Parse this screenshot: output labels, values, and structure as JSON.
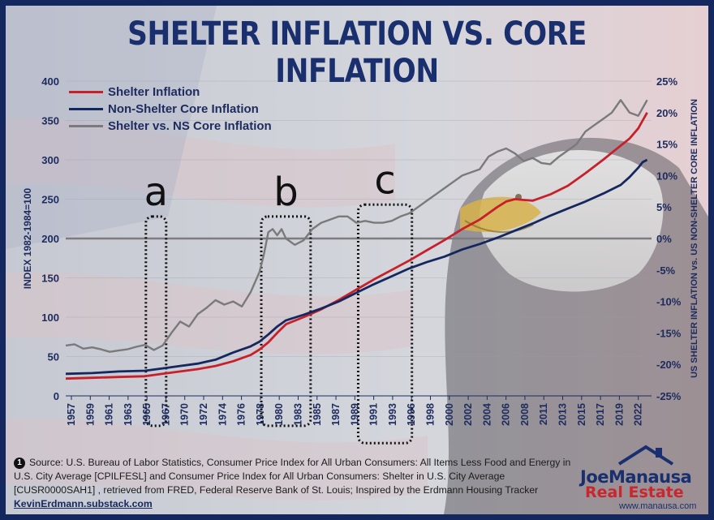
{
  "title": "SHELTER INFLATION VS. CORE INFLATION",
  "legend": [
    {
      "label": "Shelter Inflation",
      "color": "#c8202b"
    },
    {
      "label": "Non-Shelter Core Inflation",
      "color": "#14275e"
    },
    {
      "label": "Shelter vs. NS Core Inflation",
      "color": "#7a7a7a"
    }
  ],
  "source": {
    "number": "1",
    "text": "Source: U.S. Bureau of Labor Statistics, Consumer Price Index for All Urban Consumers: All Items Less Food and Energy in U.S. City Average [CPILFESL] and Consumer Price Index for All Urban Consumers: Shelter in U.S. City Average [CUSR0000SAH1] , retrieved from FRED, Federal Reserve Bank of St. Louis; Inspired by the Erdmann Housing Tracker",
    "link": "KevinErdmann.substack.com"
  },
  "logo": {
    "first": "Joe",
    "last": "Manausa",
    "sub": "Real Estate",
    "url": "www.manausa.com"
  },
  "chart_data": {
    "type": "line",
    "ylabel": "INDEX 1982-1984=100",
    "ylabel_right": "US SHELTER INFLATION vs. US NON-SHELTER CORE INFLATION",
    "ylim": [
      0,
      400
    ],
    "ylim_right": [
      -25,
      25
    ],
    "y_ticks": [
      "0",
      "50",
      "100",
      "150",
      "200",
      "250",
      "300",
      "350",
      "400"
    ],
    "y_ticks_right": [
      "-25%",
      "-20%",
      "-15%",
      "-10%",
      "-5%",
      "0%",
      "5%",
      "10%",
      "15%",
      "20%",
      "25%"
    ],
    "xlim": [
      1957,
      2023.5
    ],
    "x_ticks": [
      "1957",
      "1959",
      "1961",
      "1963",
      "1965",
      "1967",
      "1970",
      "1972",
      "1974",
      "1976",
      "1978",
      "1980",
      "1983",
      "1985",
      "1987",
      "1989",
      "1991",
      "1993",
      "1996",
      "1998",
      "2000",
      "2002",
      "2004",
      "2006",
      "2008",
      "2011",
      "2013",
      "2015",
      "2017",
      "2019",
      "2022"
    ],
    "reference_line_right": 0,
    "series": [
      {
        "name": "Shelter Inflation",
        "axis": "left",
        "color": "#c8202b",
        "x": [
          1957,
          1960,
          1963,
          1966,
          1968,
          1970,
          1972,
          1974,
          1976,
          1978,
          1979,
          1980,
          1981,
          1982,
          1984,
          1986,
          1988,
          1990,
          1992,
          1994,
          1996,
          1998,
          2000,
          2002,
          2004,
          2006,
          2007,
          2008,
          2009,
          2010,
          2012,
          2014,
          2016,
          2018,
          2020,
          2021,
          2022,
          2022.5,
          2023
        ],
        "values": [
          22,
          23,
          24,
          25,
          28,
          31,
          34,
          38,
          44,
          52,
          59,
          68,
          80,
          91,
          100,
          110,
          122,
          135,
          148,
          160,
          172,
          185,
          198,
          212,
          224,
          240,
          247,
          250,
          249,
          248,
          256,
          267,
          283,
          300,
          318,
          327,
          340,
          350,
          360
        ]
      },
      {
        "name": "Non-Shelter Core Inflation",
        "axis": "left",
        "color": "#14275e",
        "x": [
          1957,
          1960,
          1963,
          1966,
          1968,
          1970,
          1972,
          1974,
          1976,
          1978,
          1979,
          1980,
          1981,
          1982,
          1984,
          1986,
          1988,
          1990,
          1992,
          1994,
          1996,
          1998,
          2000,
          2002,
          2004,
          2006,
          2008,
          2010,
          2012,
          2014,
          2016,
          2018,
          2020,
          2021,
          2022,
          2022.5,
          2023
        ],
        "values": [
          28,
          29,
          31,
          32,
          35,
          38,
          41,
          46,
          55,
          63,
          69,
          78,
          88,
          96,
          103,
          111,
          120,
          131,
          142,
          152,
          162,
          170,
          177,
          186,
          193,
          201,
          210,
          219,
          229,
          238,
          247,
          257,
          268,
          278,
          290,
          297,
          300
        ]
      },
      {
        "name": "Shelter vs. NS Core Inflation",
        "axis": "right",
        "color": "#7a7a7a",
        "x": [
          1957,
          1958,
          1959,
          1960,
          1961,
          1962,
          1963,
          1964,
          1965,
          1966,
          1967,
          1968,
          1969,
          1970,
          1971,
          1972,
          1973,
          1974,
          1975,
          1976,
          1977,
          1978,
          1979,
          1979.5,
          1980,
          1980.5,
          1981,
          1981.5,
          1982,
          1983,
          1984,
          1985,
          1986,
          1987,
          1988,
          1989,
          1990,
          1991,
          1992,
          1993,
          1994,
          1995,
          1996,
          1997,
          1998,
          1999,
          2000,
          2001,
          2002,
          2003,
          2004,
          2005,
          2006,
          2007,
          2008,
          2009,
          2010,
          2011,
          2012,
          2013,
          2014,
          2015,
          2016,
          2017,
          2018,
          2019,
          2020,
          2021,
          2022,
          2023
        ],
        "values": [
          -17,
          -16.8,
          -17.5,
          -17.3,
          -17.6,
          -18,
          -17.8,
          -17.6,
          -17.2,
          -16.9,
          -17.7,
          -17,
          -15,
          -13.2,
          -14,
          -12,
          -11,
          -9.8,
          -10.5,
          -10,
          -10.8,
          -8.5,
          -5.3,
          -2.5,
          1,
          1.5,
          0.5,
          1.5,
          0,
          -1,
          -0.3,
          1.5,
          2.5,
          3,
          3.5,
          3.5,
          2.5,
          2.8,
          2.5,
          2.5,
          2.8,
          3.5,
          4,
          5,
          6,
          7,
          8,
          9,
          10,
          10.5,
          11,
          13,
          13.8,
          14.3,
          13.5,
          12.3,
          12.8,
          12,
          11.8,
          13,
          14,
          15,
          17,
          18,
          19,
          20,
          22,
          20,
          19.5,
          22
        ]
      }
    ],
    "annotations": [
      {
        "label": "a",
        "x_range": [
          1966.1,
          1968.4
        ],
        "y_range_left": [
          -38,
          228
        ]
      },
      {
        "label": "b",
        "x_range": [
          1979.2,
          1984.8
        ],
        "y_range_left": [
          -38,
          228
        ]
      },
      {
        "label": "c",
        "x_range": [
          1990.2,
          1996.3
        ],
        "y_range_left": [
          -60,
          243
        ]
      }
    ]
  }
}
